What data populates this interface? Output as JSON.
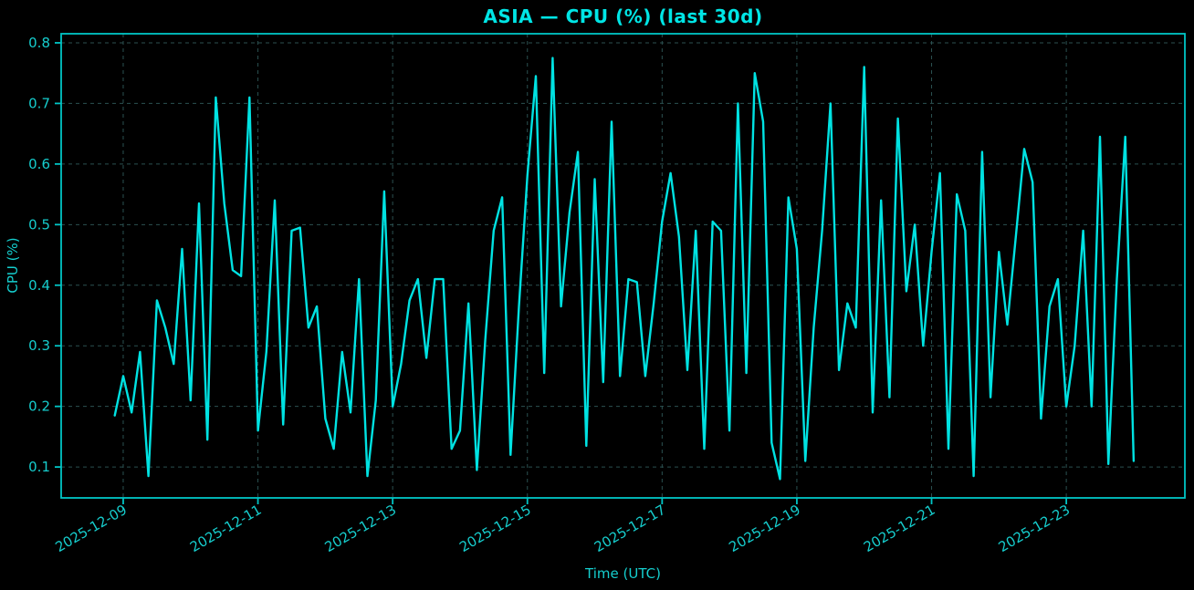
{
  "chart_data": {
    "type": "line",
    "title": "ASIA — CPU (%) (last 30d)",
    "xlabel": "Time (UTC)",
    "ylabel": "CPU (%)",
    "legend": false,
    "grid": true,
    "grid_style": "dashed",
    "colors": {
      "background": "#000000",
      "line": "#00e2e2",
      "axis": "#00c6c6",
      "grid": "#2b5151",
      "tick_text": "#16cdcd",
      "title": "#00e5e5"
    },
    "ylim": [
      0.049,
      0.815
    ],
    "y_ticks": [
      0.1,
      0.2,
      0.3,
      0.4,
      0.5,
      0.6,
      0.7,
      0.8
    ],
    "y_tick_labels": [
      "0.1",
      "0.2",
      "0.3",
      "0.4",
      "0.5",
      "0.6",
      "0.7",
      "0.8"
    ],
    "x_axis": {
      "epoch_date": "2025-12-08T00:00:00Z",
      "xlim_days": [
        0.079,
        16.76
      ],
      "tick_days": [
        1,
        3,
        5,
        7,
        9,
        11,
        13,
        15
      ],
      "tick_labels": [
        "2025-12-09",
        "2025-12-11",
        "2025-12-13",
        "2025-12-15",
        "2025-12-17",
        "2025-12-19",
        "2025-12-21",
        "2025-12-23"
      ],
      "tick_rotation_deg": 30
    },
    "series": [
      {
        "name": "CPU (%)",
        "start": "2025-12-08T21:00:00Z",
        "start_day_offset": 0.875,
        "interval_hours": 3,
        "values": [
          0.185,
          0.25,
          0.19,
          0.29,
          0.085,
          0.375,
          0.33,
          0.27,
          0.46,
          0.21,
          0.535,
          0.145,
          0.71,
          0.535,
          0.425,
          0.415,
          0.71,
          0.16,
          0.29,
          0.54,
          0.17,
          0.49,
          0.495,
          0.33,
          0.365,
          0.18,
          0.13,
          0.29,
          0.19,
          0.41,
          0.085,
          0.21,
          0.555,
          0.2,
          0.27,
          0.375,
          0.41,
          0.28,
          0.41,
          0.41,
          0.13,
          0.16,
          0.37,
          0.095,
          0.31,
          0.49,
          0.545,
          0.12,
          0.365,
          0.58,
          0.745,
          0.255,
          0.775,
          0.365,
          0.52,
          0.62,
          0.135,
          0.575,
          0.24,
          0.67,
          0.25,
          0.41,
          0.405,
          0.25,
          0.37,
          0.505,
          0.585,
          0.48,
          0.26,
          0.49,
          0.13,
          0.505,
          0.49,
          0.16,
          0.7,
          0.255,
          0.75,
          0.67,
          0.14,
          0.08,
          0.545,
          0.46,
          0.11,
          0.33,
          0.49,
          0.7,
          0.26,
          0.37,
          0.33,
          0.76,
          0.19,
          0.54,
          0.215,
          0.675,
          0.39,
          0.5,
          0.3,
          0.455,
          0.585,
          0.13,
          0.55,
          0.49,
          0.085,
          0.62,
          0.215,
          0.455,
          0.335,
          0.48,
          0.625,
          0.57,
          0.18,
          0.365,
          0.41,
          0.2,
          0.3,
          0.49,
          0.2,
          0.645,
          0.105,
          0.41,
          0.645,
          0.11
        ]
      }
    ]
  }
}
